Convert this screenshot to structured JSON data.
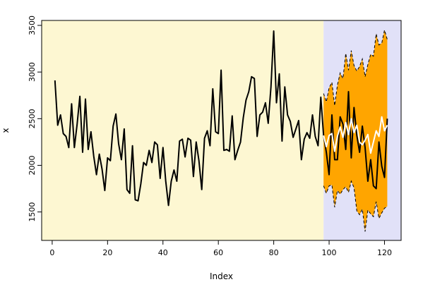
{
  "chart_data": {
    "type": "line",
    "title": "",
    "xlabel": "Index",
    "ylabel": "x",
    "xlim": [
      -3.8,
      126
    ],
    "ylim": [
      1195,
      3553
    ],
    "x_ticks": [
      0,
      20,
      40,
      60,
      80,
      100,
      120
    ],
    "y_ticks": [
      1500,
      2000,
      2500,
      3000,
      3500
    ],
    "grid": false,
    "legend": "none",
    "regions": [
      {
        "name": "history",
        "from": -3.8,
        "to": 98,
        "color": "#fdf7d2"
      },
      {
        "name": "forecast",
        "from": 98,
        "to": 126,
        "color": "#e1e1f8"
      }
    ],
    "colors": {
      "observed": "#000000",
      "band": "#ffa500",
      "band_edge": "#000000",
      "forecast": "#ffffff"
    },
    "series": [
      {
        "role": "observed",
        "x_start": 1,
        "values": [
          2910,
          2430,
          2540,
          2340,
          2310,
          2190,
          2660,
          2190,
          2440,
          2740,
          2140,
          2710,
          2170,
          2360,
          2100,
          1900,
          2120,
          1960,
          1730,
          2080,
          2050,
          2420,
          2550,
          2230,
          2060,
          2390,
          1740,
          1700,
          2210,
          1630,
          1620,
          1800,
          2030,
          2000,
          2160,
          2030,
          2250,
          2220,
          1860,
          2190,
          1830,
          1570,
          1830,
          1950,
          1830,
          2260,
          2280,
          2090,
          2290,
          2270,
          1880,
          2250,
          2050,
          1740,
          2290,
          2370,
          2210,
          2820,
          2360,
          2340,
          3020,
          2160,
          2170,
          2150,
          2530,
          2060,
          2160,
          2250,
          2510,
          2700,
          2790,
          2950,
          2930,
          2310,
          2540,
          2570,
          2670,
          2450,
          2840,
          3440,
          2670,
          2980,
          2260,
          2840,
          2540,
          2470,
          2300,
          2390,
          2480,
          2060,
          2280,
          2350,
          2290,
          2540,
          2310,
          2210,
          2730,
          2320,
          2140,
          1900,
          2540,
          2060,
          2060,
          2520,
          2440,
          2170,
          2790,
          2080,
          2620,
          2320,
          2140,
          2420,
          2190,
          1830,
          2060,
          1780,
          1750,
          2250,
          1990,
          1870,
          2500
        ]
      },
      {
        "role": "forecast",
        "x_start": 98,
        "values": [
          2320,
          2200,
          2320,
          2340,
          2150,
          2310,
          2410,
          2300,
          2460,
          2330,
          2500,
          2350,
          2430,
          2250,
          2220,
          2270,
          2330,
          2130,
          2250,
          2370,
          2310,
          2520,
          2370,
          2430
        ]
      },
      {
        "role": "band_upper",
        "x_start": 98,
        "values": [
          2770,
          2680,
          2830,
          2890,
          2640,
          2860,
          2990,
          2930,
          3200,
          3020,
          3230,
          3070,
          3010,
          3060,
          3140,
          2950,
          3080,
          3190,
          3170,
          3410,
          3290,
          3310,
          3450,
          3350
        ]
      },
      {
        "role": "band_lower",
        "x_start": 98,
        "values": [
          1780,
          1700,
          1780,
          1790,
          1550,
          1730,
          1690,
          1740,
          1770,
          1710,
          1830,
          1760,
          1510,
          1470,
          1530,
          1290,
          1520,
          1480,
          1450,
          1610,
          1430,
          1490,
          1540,
          1560
        ]
      }
    ]
  }
}
